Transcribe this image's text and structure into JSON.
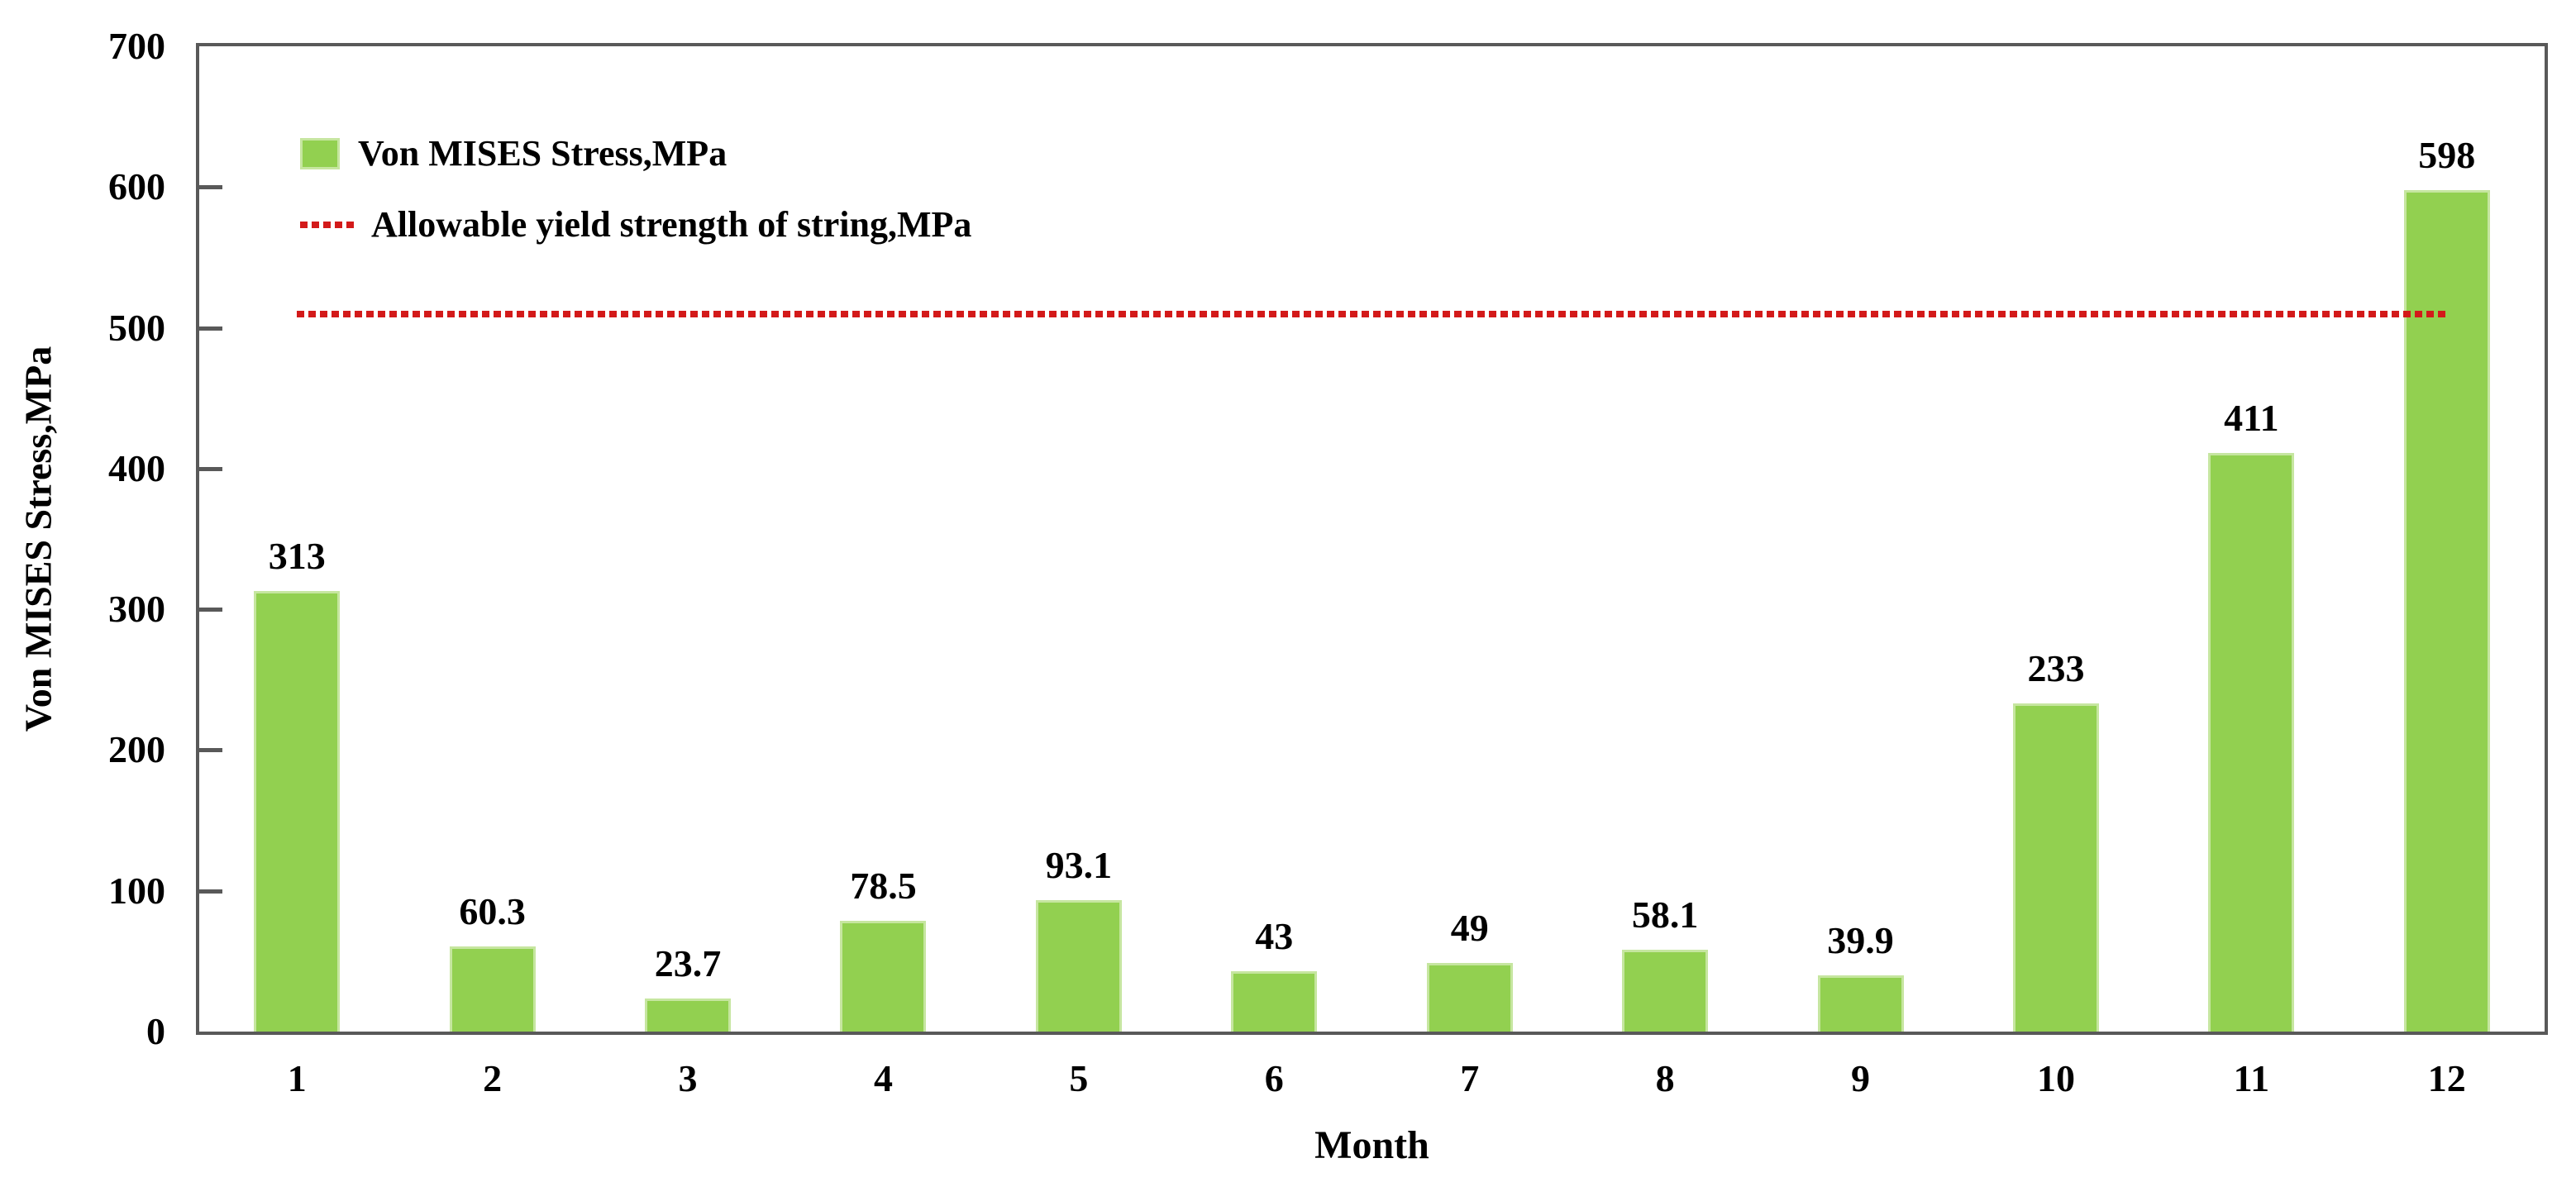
{
  "chart_data": {
    "type": "bar",
    "title": "",
    "xlabel": "Month",
    "ylabel": "Von MISES Stress,MPa",
    "categories": [
      "1",
      "2",
      "3",
      "4",
      "5",
      "6",
      "7",
      "8",
      "9",
      "10",
      "11",
      "12"
    ],
    "series": [
      {
        "name": "Von MISES Stress,MPa",
        "type": "bar",
        "color": "#92d050",
        "edge_color": "#c6e6a0",
        "values": [
          313,
          60.3,
          23.7,
          78.5,
          93.1,
          43,
          49,
          58.1,
          39.9,
          233,
          411,
          598
        ],
        "value_labels": [
          "313",
          "60.3",
          "23.7",
          "78.5",
          "93.1",
          "43",
          "49",
          "58.1",
          "39.9",
          "233",
          "411",
          "598"
        ]
      },
      {
        "name": "Allowable yield strength of string,MPa",
        "type": "dotted-line",
        "color": "#d31a1a",
        "value": 510
      }
    ],
    "ylim": [
      0,
      700
    ],
    "ytick_step": 100,
    "yticks": [
      "0",
      "100",
      "200",
      "300",
      "400",
      "500",
      "600",
      "700"
    ],
    "grid": false,
    "legend_position": "top-left-inside",
    "axis_color": "#595959",
    "text_color": "#000000",
    "background": "#ffffff"
  }
}
